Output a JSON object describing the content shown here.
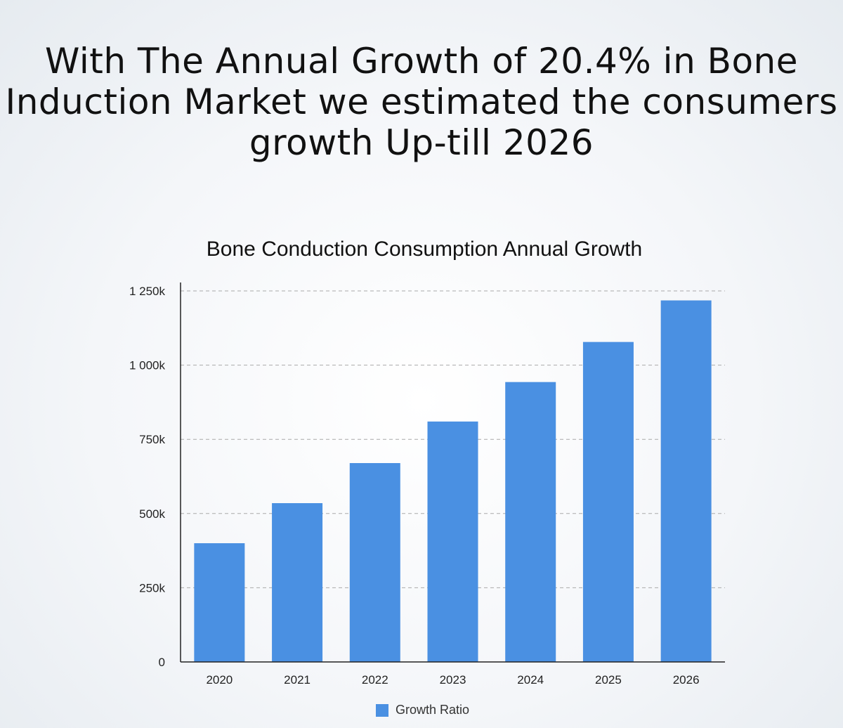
{
  "headline": "With The Annual Growth of 20.4% in Bone Induction Market we estimated the consumers growth Up-till 2026",
  "chart_data": {
    "type": "bar",
    "title": "Bone Conduction Consumption Annual Growth",
    "categories": [
      "2020",
      "2021",
      "2022",
      "2023",
      "2024",
      "2025",
      "2026"
    ],
    "series": [
      {
        "name": "Growth Ratio",
        "values": [
          400000,
          535000,
          670000,
          810000,
          943000,
          1078000,
          1218000
        ],
        "color": "#4a90e2"
      }
    ],
    "yticks": [
      0,
      250000,
      500000,
      750000,
      1000000,
      1250000
    ],
    "ytick_labels": [
      "0",
      "250k",
      "500k",
      "750k",
      "1 000k",
      "1 250k"
    ],
    "ylim": [
      0,
      1250000
    ],
    "xlabel": "",
    "ylabel": "",
    "grid": true,
    "legend": "bottom-center"
  }
}
